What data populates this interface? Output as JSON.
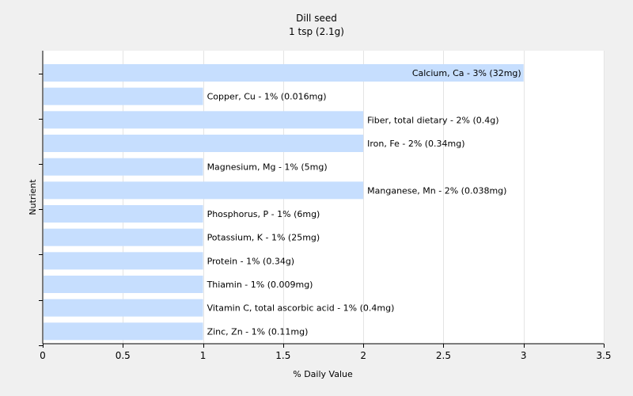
{
  "chart_data": {
    "type": "bar",
    "orientation": "horizontal",
    "title": "Dill seed",
    "subtitle": "1 tsp (2.1g)",
    "xlabel": "% Daily Value",
    "ylabel": "Nutrient",
    "xlim": [
      0,
      3.5
    ],
    "xticks": [
      "0",
      "0.5",
      "1",
      "1.5",
      "2",
      "2.5",
      "3",
      "3.5"
    ],
    "grid": "vertical",
    "colors": {
      "bar": "#c6defe",
      "plot_background": "#ffffff",
      "page_background": "#f0f0f0",
      "grid": "#e4e4e4"
    },
    "categories": [
      "Calcium, Ca",
      "Copper, Cu",
      "Fiber, total dietary",
      "Iron, Fe",
      "Magnesium, Mg",
      "Manganese, Mn",
      "Phosphorus, P",
      "Potassium, K",
      "Protein",
      "Thiamin",
      "Vitamin C, total ascorbic acid",
      "Zinc, Zn"
    ],
    "values": [
      3,
      1,
      2,
      2,
      1,
      2,
      1,
      1,
      1,
      1,
      1,
      1
    ],
    "labels": [
      "Calcium, Ca - 3% (32mg)",
      "Copper, Cu - 1% (0.016mg)",
      "Fiber, total dietary - 2% (0.4g)",
      "Iron, Fe - 2% (0.34mg)",
      "Magnesium, Mg - 1% (5mg)",
      "Manganese, Mn - 2% (0.038mg)",
      "Phosphorus, P - 1% (6mg)",
      "Potassium, K - 1% (25mg)",
      "Protein - 1% (0.34g)",
      "Thiamin - 1% (0.009mg)",
      "Vitamin C, total ascorbic acid - 1% (0.4mg)",
      "Zinc, Zn - 1% (0.11mg)"
    ]
  }
}
